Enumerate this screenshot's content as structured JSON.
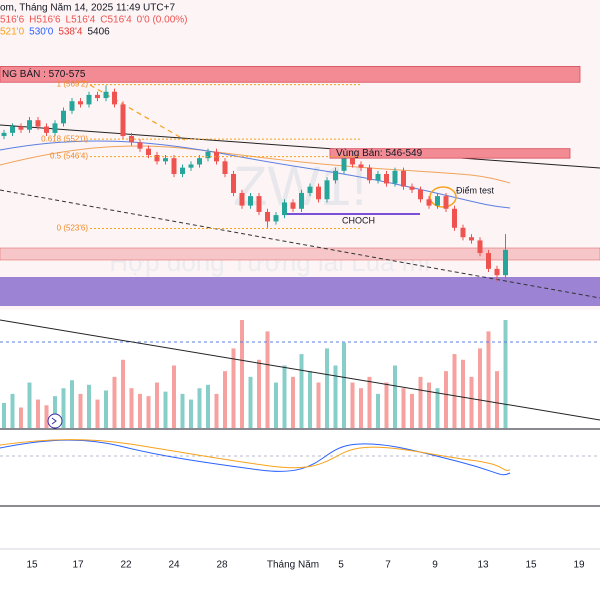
{
  "header": {
    "line1": "om, Tháng Năm 14, 2025 11:49 UTC+7",
    "ohlc": [
      "516'6",
      "H516'6",
      "L516'4",
      "C516'4",
      "0'0 (0.00%)"
    ],
    "indicators": [
      {
        "text": "521'0",
        "color": "#f7a21b"
      },
      {
        "text": "530'0",
        "color": "#2962ff"
      },
      {
        "text": "538'4",
        "color": "#e53935"
      },
      {
        "text": "5406",
        "color": "#131722"
      }
    ]
  },
  "watermark": {
    "symbol": "ZW1!",
    "name": "Hợp đồng Tương lai Lúa mì"
  },
  "x_labels": [
    "15",
    "17",
    "22",
    "24",
    "28",
    "Tháng Năm",
    "5",
    "7",
    "9",
    "13",
    "15",
    "19"
  ],
  "chart_data": {
    "type": "candlestick",
    "ylim": [
      498,
      596
    ],
    "up_color": "#26a69a",
    "down_color": "#ef5350",
    "open": [
      553,
      554,
      556,
      555,
      558,
      556,
      554,
      557,
      561,
      564,
      563,
      566,
      565,
      567,
      563,
      553,
      551,
      549,
      547,
      545,
      546,
      541,
      543,
      544,
      546,
      548,
      545,
      541,
      535,
      531,
      534,
      529,
      526,
      528,
      532,
      530,
      535,
      537,
      533,
      539,
      542,
      546,
      544,
      543,
      539,
      541,
      538,
      542,
      537,
      536,
      533,
      531,
      534,
      530,
      524,
      521,
      520,
      516,
      511,
      509
    ],
    "high": [
      555,
      557,
      557,
      559,
      559,
      557,
      558,
      562,
      565,
      565,
      567,
      567,
      569,
      568,
      564,
      554,
      552,
      550,
      548,
      547,
      547,
      544,
      545,
      547,
      549,
      549,
      546,
      542,
      536,
      535,
      535,
      530,
      529,
      533,
      533,
      536,
      538,
      538,
      540,
      543,
      548,
      547,
      545,
      544,
      542,
      542,
      543,
      543,
      538,
      537,
      534,
      535,
      535,
      531,
      525,
      522,
      521,
      517,
      512,
      522
    ],
    "low": [
      552,
      553,
      554,
      554,
      555,
      553,
      553,
      556,
      560,
      562,
      562,
      564,
      564,
      562,
      552,
      550,
      548,
      546,
      544,
      544,
      540,
      540,
      542,
      543,
      545,
      544,
      540,
      534,
      530,
      530,
      528,
      524,
      525,
      527,
      529,
      529,
      534,
      532,
      532,
      538,
      541,
      543,
      542,
      538,
      538,
      537,
      537,
      536,
      535,
      532,
      530,
      530,
      529,
      523,
      520,
      519,
      515,
      510,
      507,
      508
    ],
    "close": [
      554,
      556,
      555,
      558,
      556,
      554,
      557,
      561,
      564,
      563,
      566,
      565,
      567,
      563,
      553,
      551,
      549,
      547,
      545,
      546,
      541,
      543,
      544,
      546,
      548,
      545,
      541,
      535,
      531,
      534,
      529,
      526,
      528,
      532,
      530,
      535,
      537,
      533,
      539,
      542,
      546,
      544,
      543,
      539,
      541,
      538,
      542,
      537,
      536,
      533,
      531,
      534,
      530,
      524,
      521,
      520,
      516,
      511,
      509,
      517
    ],
    "volume": [
      22,
      30,
      18,
      40,
      25,
      20,
      28,
      35,
      42,
      30,
      38,
      25,
      33,
      45,
      60,
      35,
      30,
      28,
      40,
      32,
      55,
      30,
      25,
      35,
      38,
      30,
      50,
      70,
      95,
      45,
      60,
      85,
      40,
      55,
      45,
      65,
      50,
      40,
      70,
      55,
      75,
      40,
      35,
      45,
      30,
      40,
      55,
      35,
      30,
      45,
      40,
      35,
      50,
      65,
      60,
      45,
      70,
      85,
      50,
      95
    ],
    "fib_levels": [
      {
        "label": "1 (569'2)",
        "value": 569.25
      },
      {
        "label": "0.618 (552'0)",
        "value": 552
      },
      {
        "label": "0.5 (546'4)",
        "value": 546.5
      },
      {
        "label": "0 (523'6)",
        "value": 523.75
      }
    ],
    "zones": [
      {
        "label": "NG BÁN : 570-575",
        "low": 570,
        "high": 575
      },
      {
        "label": "Vùng Bán: 546-549",
        "low": 546,
        "high": 549
      }
    ],
    "annotations": [
      "CHOCH",
      "Điểm test"
    ]
  }
}
